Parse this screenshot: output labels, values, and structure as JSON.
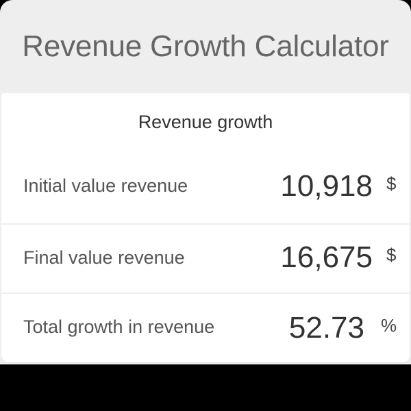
{
  "header": {
    "title": "Revenue Growth Calculator"
  },
  "calculator": {
    "section_title": "Revenue growth",
    "rows": [
      {
        "label": "Initial value revenue",
        "value": "10,918",
        "unit": "$"
      },
      {
        "label": "Final value revenue",
        "value": "16,675",
        "unit": "$"
      },
      {
        "label": "Total growth in revenue",
        "value": "52.73",
        "unit": "%"
      }
    ]
  },
  "colors": {
    "header_background": "#eeeeee",
    "card_background": "#ffffff",
    "title_text": "#666666",
    "divider": "#eeeeee"
  }
}
